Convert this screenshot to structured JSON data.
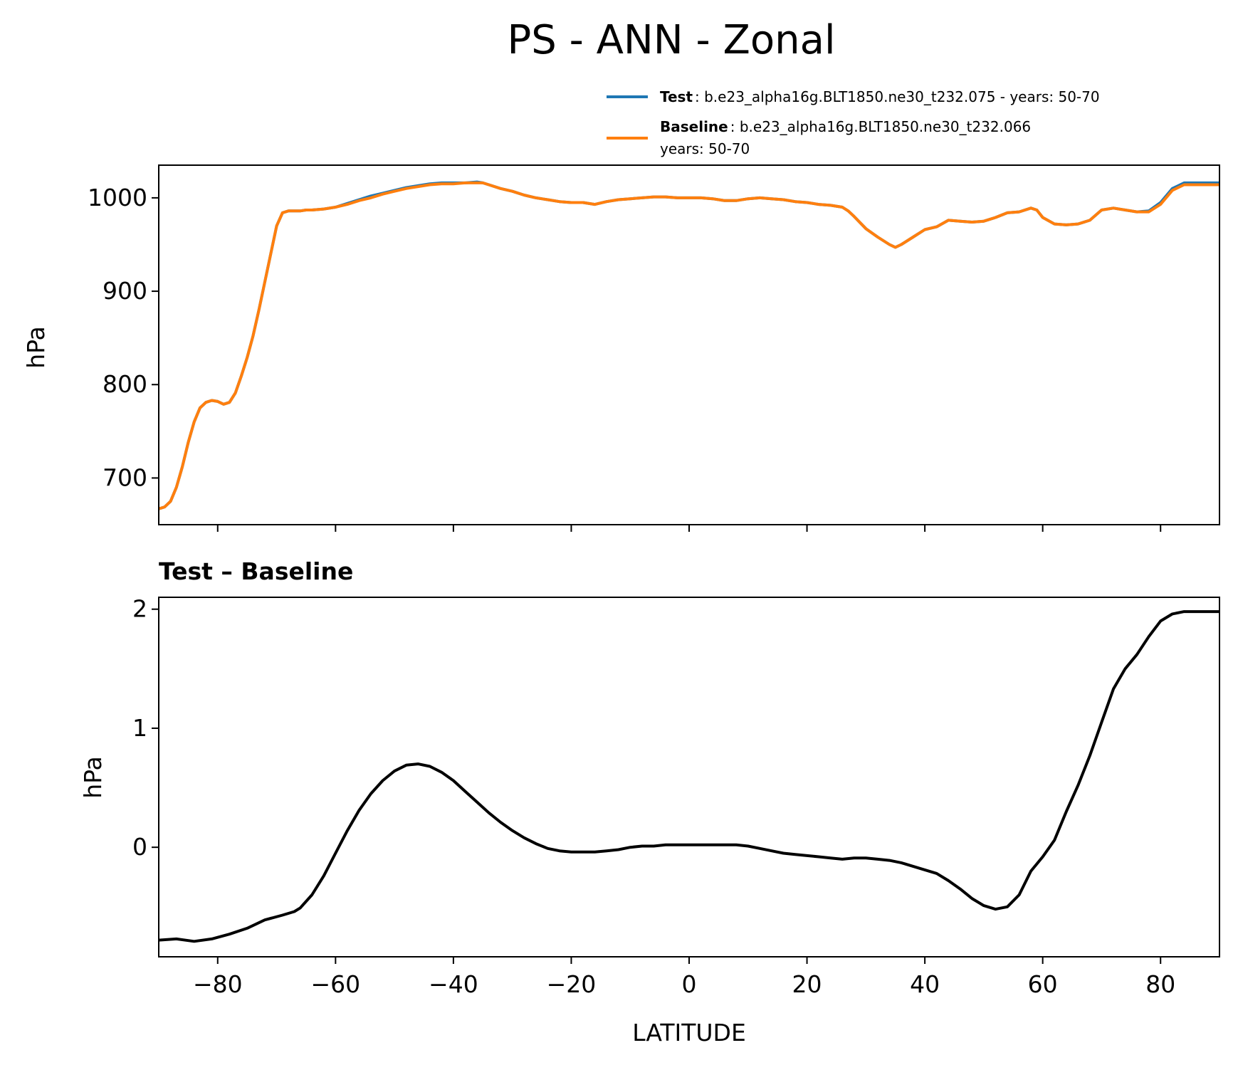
{
  "figure": {
    "title": "PS - ANN - Zonal"
  },
  "legend": {
    "position": "upper-right",
    "entries": [
      {
        "key": "Test",
        "text": ": b.e23_alpha16g.BLT1850.ne30_t232.075 - years: 50-70",
        "text2": "",
        "color": "#1f77b4"
      },
      {
        "key": "Baseline",
        "text": ": b.e23_alpha16g.BLT1850.ne30_t232.066",
        "text2": "years: 50-70",
        "color": "#ff7f0e"
      }
    ]
  },
  "chart_data": [
    {
      "type": "line",
      "title": "",
      "xlabel": "",
      "ylabel": "hPa",
      "xlim": [
        -90,
        90
      ],
      "ylim": [
        650,
        1035
      ],
      "yticks": [
        700,
        800,
        900,
        1000
      ],
      "xticks": [
        -80,
        -60,
        -40,
        -20,
        0,
        20,
        40,
        60,
        80
      ],
      "grid": false,
      "x": [
        -90,
        -89,
        -88,
        -87,
        -86,
        -85,
        -84,
        -83,
        -82,
        -81,
        -80,
        -79,
        -78,
        -77,
        -76,
        -75,
        -74,
        -73,
        -72,
        -71,
        -70,
        -69,
        -68,
        -67,
        -66,
        -65,
        -64,
        -62,
        -60,
        -58,
        -56,
        -54,
        -52,
        -50,
        -48,
        -46,
        -44,
        -42,
        -40,
        -38,
        -36,
        -35,
        -34,
        -32,
        -30,
        -28,
        -26,
        -24,
        -22,
        -20,
        -18,
        -16,
        -14,
        -12,
        -10,
        -8,
        -6,
        -4,
        -2,
        0,
        2,
        4,
        6,
        8,
        10,
        12,
        14,
        16,
        18,
        20,
        22,
        24,
        26,
        27,
        28,
        30,
        32,
        34,
        35,
        36,
        38,
        40,
        42,
        44,
        46,
        48,
        50,
        52,
        54,
        56,
        58,
        59,
        60,
        62,
        64,
        66,
        68,
        70,
        72,
        74,
        76,
        78,
        80,
        82,
        84,
        86,
        88,
        90
      ],
      "series": [
        {
          "name": "Test",
          "color": "#1f77b4",
          "values": [
            667,
            669,
            675,
            690,
            712,
            738,
            760,
            775,
            781,
            783,
            782,
            779,
            781,
            791,
            809,
            829,
            852,
            880,
            910,
            940,
            970,
            984,
            986,
            986,
            986,
            987,
            987,
            988,
            990,
            994,
            998,
            1002,
            1005,
            1008,
            1011,
            1013,
            1015,
            1016,
            1016,
            1016,
            1017,
            1016,
            1014,
            1010,
            1007,
            1003,
            1000,
            998,
            996,
            995,
            995,
            993,
            996,
            998,
            999,
            1000,
            1001,
            1001,
            1000,
            1000,
            1000,
            999,
            997,
            997,
            999,
            1000,
            999,
            998,
            996,
            995,
            993,
            992,
            990,
            986,
            980,
            967,
            958,
            950,
            947,
            950,
            958,
            966,
            969,
            976,
            975,
            974,
            975,
            979,
            984,
            985,
            989,
            987,
            979,
            972,
            971,
            972,
            976,
            987,
            989,
            987,
            985,
            986,
            995,
            1010,
            1016,
            1016,
            1016,
            1016
          ],
          "note_line_width": 4
        },
        {
          "name": "Baseline",
          "color": "#ff7f0e",
          "values": [
            667,
            669,
            675,
            690,
            712,
            738,
            760,
            775,
            781,
            783,
            782,
            779,
            781,
            791,
            809,
            829,
            852,
            880,
            910,
            940,
            970,
            984,
            986,
            986,
            986,
            987,
            987,
            988,
            990,
            993,
            997,
            1000,
            1004,
            1007,
            1010,
            1012,
            1014,
            1015,
            1015,
            1016,
            1016,
            1016,
            1014,
            1010,
            1007,
            1003,
            1000,
            998,
            996,
            995,
            995,
            993,
            996,
            998,
            999,
            1000,
            1001,
            1001,
            1000,
            1000,
            1000,
            999,
            997,
            997,
            999,
            1000,
            999,
            998,
            996,
            995,
            993,
            992,
            990,
            986,
            980,
            967,
            958,
            950,
            947,
            950,
            958,
            966,
            969,
            976,
            975,
            974,
            975,
            979,
            984,
            985,
            989,
            987,
            979,
            972,
            971,
            972,
            976,
            987,
            989,
            987,
            985,
            985,
            993,
            1008,
            1014,
            1014,
            1014,
            1014
          ]
        }
      ]
    },
    {
      "type": "line",
      "title": "Test – Baseline",
      "xlabel": "LATITUDE",
      "ylabel": "hPa",
      "xlim": [
        -90,
        90
      ],
      "ylim": [
        -0.92,
        2.1
      ],
      "yticks": [
        0,
        1,
        2
      ],
      "xticks": [
        -80,
        -60,
        -40,
        -20,
        0,
        20,
        40,
        60,
        80
      ],
      "grid": false,
      "x": [
        -90,
        -87,
        -84,
        -81,
        -78,
        -75,
        -72,
        -69,
        -67,
        -66,
        -64,
        -62,
        -60,
        -58,
        -56,
        -54,
        -52,
        -50,
        -48,
        -46,
        -44,
        -42,
        -40,
        -38,
        -36,
        -34,
        -32,
        -30,
        -28,
        -26,
        -24,
        -22,
        -20,
        -18,
        -16,
        -14,
        -12,
        -10,
        -8,
        -6,
        -4,
        -2,
        0,
        2,
        4,
        6,
        8,
        10,
        12,
        14,
        16,
        18,
        20,
        22,
        24,
        26,
        28,
        30,
        32,
        34,
        36,
        38,
        40,
        42,
        44,
        46,
        48,
        50,
        52,
        54,
        56,
        58,
        60,
        62,
        64,
        66,
        68,
        70,
        72,
        74,
        76,
        78,
        80,
        82,
        84,
        86,
        88,
        90
      ],
      "series": [
        {
          "name": "",
          "color": "#000000",
          "values": [
            -0.78,
            -0.77,
            -0.79,
            -0.77,
            -0.73,
            -0.68,
            -0.61,
            -0.57,
            -0.54,
            -0.51,
            -0.4,
            -0.24,
            -0.05,
            0.14,
            0.31,
            0.45,
            0.56,
            0.64,
            0.69,
            0.7,
            0.68,
            0.63,
            0.56,
            0.47,
            0.38,
            0.29,
            0.21,
            0.14,
            0.08,
            0.03,
            -0.01,
            -0.03,
            -0.04,
            -0.04,
            -0.04,
            -0.03,
            -0.02,
            0.0,
            0.01,
            0.01,
            0.02,
            0.02,
            0.02,
            0.02,
            0.02,
            0.02,
            0.02,
            0.01,
            -0.01,
            -0.03,
            -0.05,
            -0.06,
            -0.07,
            -0.08,
            -0.09,
            -0.1,
            -0.09,
            -0.09,
            -0.1,
            -0.11,
            -0.13,
            -0.16,
            -0.19,
            -0.22,
            -0.28,
            -0.35,
            -0.43,
            -0.49,
            -0.52,
            -0.5,
            -0.4,
            -0.2,
            -0.08,
            0.06,
            0.3,
            0.52,
            0.77,
            1.05,
            1.33,
            1.5,
            1.62,
            1.77,
            1.9,
            1.96,
            1.98,
            1.98,
            1.98,
            1.98
          ]
        }
      ]
    }
  ]
}
